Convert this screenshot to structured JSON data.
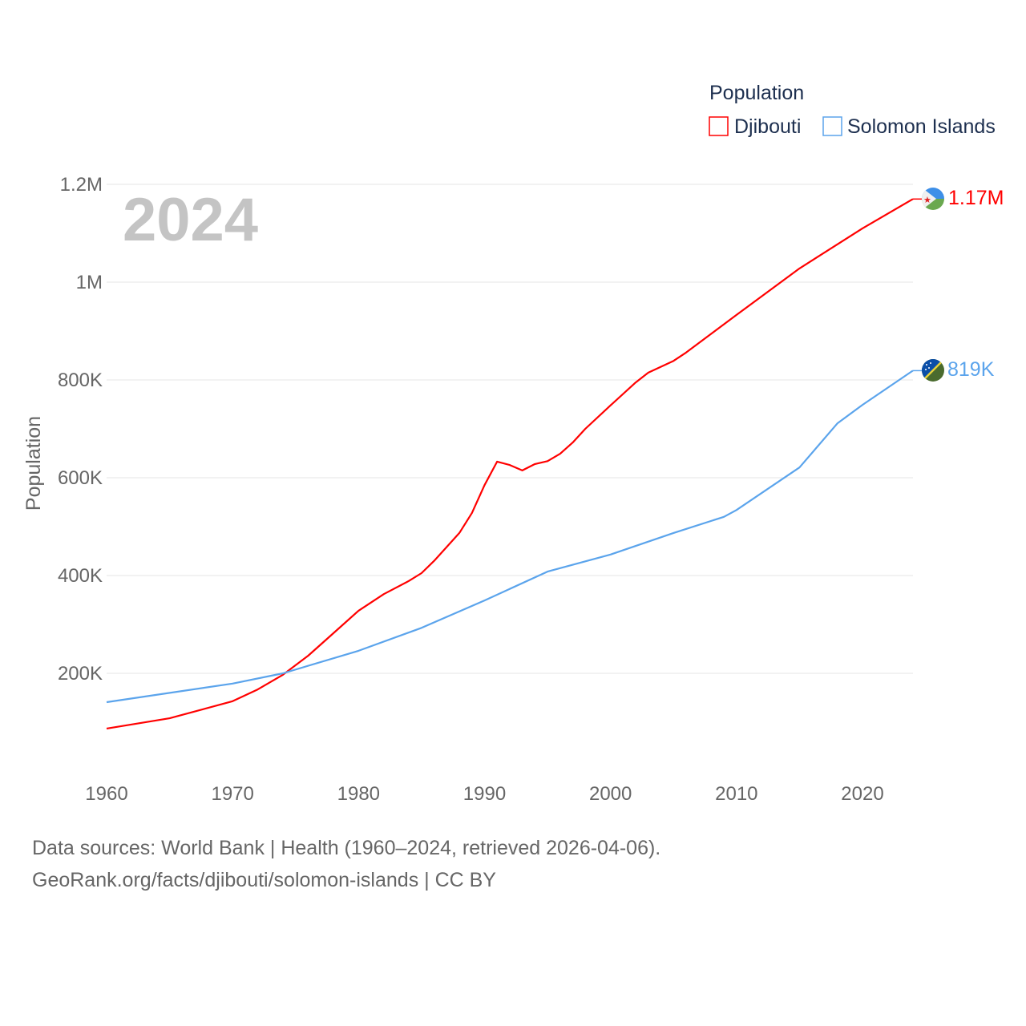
{
  "chart_data": {
    "type": "line",
    "title": "",
    "year_label": "2024",
    "xlabel": "",
    "ylabel": "Population",
    "xlim": [
      1960,
      2024
    ],
    "ylim": [
      0,
      1200000
    ],
    "x_ticks": [
      "1960",
      "1970",
      "1980",
      "1990",
      "2000",
      "2010",
      "2020"
    ],
    "y_ticks": [
      {
        "value": 200000,
        "label": "200K"
      },
      {
        "value": 400000,
        "label": "400K"
      },
      {
        "value": 600000,
        "label": "600K"
      },
      {
        "value": 800000,
        "label": "800K"
      },
      {
        "value": 1000000,
        "label": "1M"
      },
      {
        "value": 1200000,
        "label": "1.2M"
      }
    ],
    "grid": true,
    "legend": {
      "title": "Population",
      "placement": "top-right"
    },
    "series": [
      {
        "name": "Djibouti",
        "color": "#ff0000",
        "end_label": "1.17M",
        "flag": "djibouti-flag",
        "x": [
          1960,
          1965,
          1970,
          1972,
          1974,
          1976,
          1978,
          1980,
          1982,
          1984,
          1985,
          1986,
          1988,
          1989,
          1990,
          1991,
          1992,
          1993,
          1994,
          1995,
          1996,
          1997,
          1998,
          2000,
          2002,
          2003,
          2005,
          2006,
          2010,
          2015,
          2020,
          2024
        ],
        "y": [
          87000,
          108000,
          143000,
          167000,
          197000,
          236000,
          282000,
          328000,
          362000,
          389000,
          405000,
          430000,
          487000,
          528000,
          585000,
          633000,
          626000,
          615000,
          628000,
          634000,
          649000,
          672000,
          700000,
          748000,
          795000,
          815000,
          839000,
          856000,
          933000,
          1028000,
          1110000,
          1170000
        ]
      },
      {
        "name": "Solomon Islands",
        "color": "#5ba4ec",
        "end_label": "819K",
        "flag": "solomon-islands-flag",
        "x": [
          1960,
          1970,
          1974,
          1980,
          1985,
          1990,
          1995,
          2000,
          2005,
          2009,
          2010,
          2015,
          2018,
          2020,
          2024
        ],
        "y": [
          141000,
          179000,
          200000,
          246000,
          293000,
          349000,
          408000,
          443000,
          487000,
          520000,
          534000,
          621000,
          711000,
          749000,
          819000
        ]
      }
    ]
  },
  "footer": {
    "line1": "Data sources: World Bank | Health (1960–2024, retrieved 2026-04-06).",
    "line2": "GeoRank.org/facts/djibouti/solomon-islands | CC BY"
  }
}
